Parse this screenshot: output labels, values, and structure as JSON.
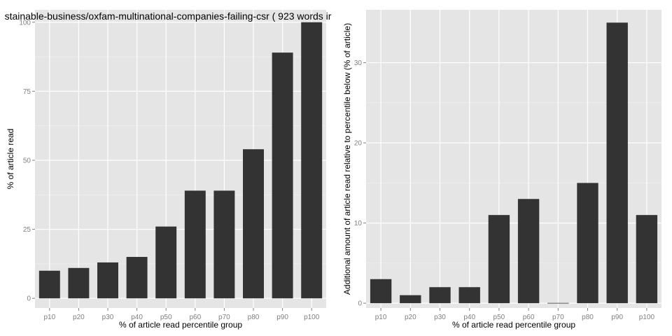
{
  "colors": {
    "panel_bg": "#e5e5e5",
    "grid_major": "#ffffff",
    "grid_minor": "#f2f2f2",
    "bar_fill": "#333333",
    "tick_text": "#7f7f7f",
    "tick_mark": "#7f7f7f"
  },
  "chart_data": [
    {
      "type": "bar",
      "title": "stainable-business/oxfam-multinational-companies-failing-csr ( 923 words ir",
      "xlabel": "% of article read percentile group",
      "ylabel": "% of article read",
      "categories": [
        "p10",
        "p20",
        "p30",
        "p40",
        "p50",
        "p60",
        "p70",
        "p80",
        "p90",
        "p100"
      ],
      "values": [
        10,
        11,
        13,
        15,
        26,
        39,
        39,
        54,
        89,
        100
      ],
      "ylim": [
        -3.5,
        104.5
      ],
      "yticks": [
        0,
        25,
        50,
        75,
        100
      ],
      "ytick_labels": [
        "0",
        "25",
        "50",
        "75",
        "100"
      ],
      "grid": true
    },
    {
      "type": "bar",
      "title": "",
      "xlabel": "% of article read percentile group",
      "ylabel": "Additional amount of article read relative to percentile below (% of article)",
      "categories": [
        "p10",
        "p20",
        "p30",
        "p40",
        "p50",
        "p60",
        "p70",
        "p80",
        "p90",
        "p100"
      ],
      "values": [
        3,
        1,
        2,
        2,
        11,
        13,
        0,
        15,
        35,
        11
      ],
      "ylim": [
        -0.6,
        36.6
      ],
      "yticks": [
        0,
        10,
        20,
        30
      ],
      "ytick_labels": [
        "0",
        "10",
        "20",
        "30"
      ],
      "grid": true
    }
  ]
}
